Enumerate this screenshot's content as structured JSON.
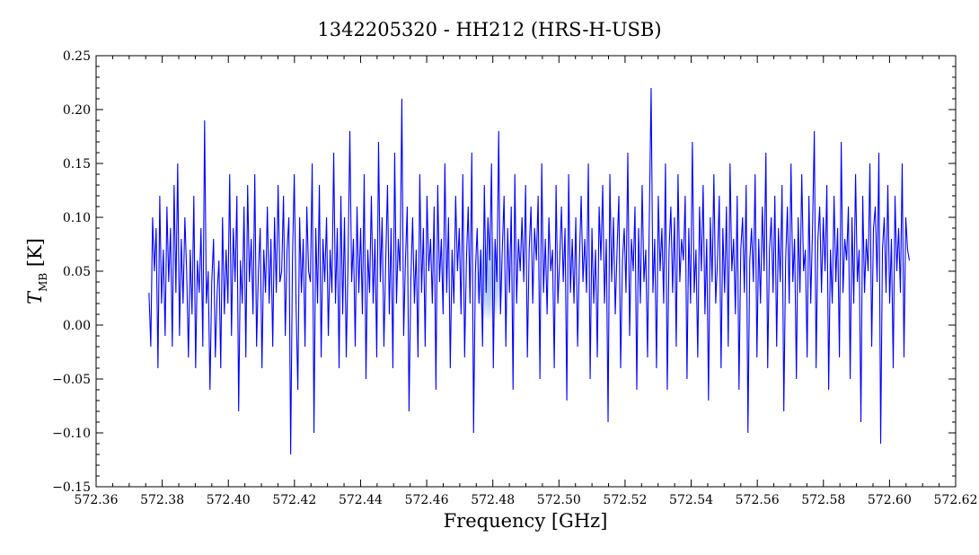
{
  "chart_data": {
    "type": "line",
    "title": "1342205320 - HH212 (HRS-H-USB)",
    "xlabel": "Frequency [GHz]",
    "ylabel_main": "T",
    "ylabel_sub": "MB",
    "ylabel_unit": " [K]",
    "xlim": [
      572.36,
      572.62
    ],
    "ylim": [
      -0.15,
      0.25
    ],
    "xticks": [
      572.36,
      572.38,
      572.4,
      572.42,
      572.44,
      572.46,
      572.48,
      572.5,
      572.52,
      572.54,
      572.56,
      572.58,
      572.6,
      572.62
    ],
    "xtick_labels": [
      "572.36",
      "572.38",
      "572.40",
      "572.42",
      "572.44",
      "572.46",
      "572.48",
      "572.50",
      "572.52",
      "572.54",
      "572.56",
      "572.58",
      "572.60",
      "572.62"
    ],
    "yticks": [
      -0.15,
      -0.1,
      -0.05,
      0.0,
      0.05,
      0.1,
      0.15,
      0.2,
      0.25
    ],
    "ytick_labels": [
      "−0.15",
      "−0.10",
      "−0.05",
      "0.00",
      "0.05",
      "0.10",
      "0.15",
      "0.20",
      "0.25"
    ],
    "grid": false,
    "line_color": "#0000ff",
    "highlight_color": "#8fb0ea",
    "highlight": {
      "x": 572.479,
      "y": 0.043,
      "rx": 0.0045,
      "ry": 0.04
    },
    "series": [
      {
        "x_start": 572.376,
        "x_end": 572.606,
        "y": [
          0.03,
          -0.02,
          0.1,
          0.05,
          0.09,
          -0.04,
          0.12,
          0.02,
          0.07,
          -0.01,
          0.11,
          0.04,
          0.09,
          -0.02,
          0.13,
          0.03,
          0.15,
          -0.01,
          0.08,
          0.02,
          0.1,
          0.05,
          -0.03,
          0.07,
          0.01,
          0.12,
          -0.04,
          0.06,
          0.03,
          0.09,
          -0.02,
          0.19,
          0.02,
          0.05,
          -0.06,
          0.04,
          0.08,
          -0.03,
          0.03,
          0.06,
          -0.04,
          0.1,
          0.01,
          0.07,
          0.02,
          0.14,
          -0.01,
          0.09,
          0.04,
          0.12,
          -0.08,
          0.06,
          0.02,
          0.11,
          -0.03,
          0.13,
          0.04,
          0.08,
          0.01,
          0.14,
          -0.02,
          0.05,
          0.09,
          -0.04,
          0.07,
          0.03,
          0.11,
          0.02,
          0.08,
          -0.02,
          0.1,
          0.03,
          0.13,
          0.04,
          0.05,
          0.12,
          -0.01,
          0.07,
          0.1,
          -0.12,
          0.06,
          0.14,
          0.02,
          -0.06,
          0.1,
          0.03,
          0.08,
          -0.02,
          0.11,
          0.05,
          0.04,
          0.15,
          -0.1,
          0.09,
          0.02,
          0.13,
          -0.03,
          0.08,
          0.04,
          0.1,
          -0.01,
          0.07,
          0.03,
          0.16,
          0.02,
          0.09,
          -0.04,
          0.12,
          0.01,
          0.1,
          -0.03,
          0.06,
          0.18,
          0.04,
          0.08,
          -0.02,
          0.11,
          0.03,
          0.09,
          0.01,
          0.14,
          -0.05,
          0.07,
          0.03,
          0.12,
          0.02,
          0.08,
          -0.03,
          0.17,
          0.04,
          0.1,
          -0.02,
          0.06,
          0.13,
          0.01,
          0.09,
          -0.04,
          0.16,
          0.02,
          0.08,
          0.05,
          0.21,
          -0.01,
          0.06,
          0.11,
          -0.08,
          0.04,
          0.1,
          0.02,
          0.07,
          -0.03,
          0.14,
          0.03,
          0.09,
          -0.02,
          0.12,
          0.05,
          0.08,
          0.02,
          0.11,
          -0.06,
          0.13,
          0.04,
          0.08,
          0.01,
          0.15,
          0.03,
          0.1,
          -0.04,
          0.07,
          0.02,
          0.12,
          0.05,
          0.09,
          0.01,
          0.14,
          -0.03,
          0.06,
          0.11,
          0.02,
          0.16,
          -0.1,
          0.05,
          0.09,
          0.02,
          0.07,
          -0.02,
          0.13,
          0.03,
          0.1,
          0.06,
          0.15,
          -0.04,
          0.08,
          0.04,
          0.18,
          0.01,
          0.07,
          0.12,
          -0.02,
          0.09,
          0.03,
          0.11,
          -0.06,
          0.14,
          0.02,
          0.08,
          0.05,
          0.1,
          0.04,
          0.13,
          -0.03,
          0.07,
          0.11,
          0.02,
          0.09,
          0.06,
          0.12,
          -0.05,
          0.15,
          0.03,
          0.08,
          0.01,
          0.1,
          0.05,
          0.07,
          -0.04,
          0.13,
          0.02,
          0.06,
          0.11,
          0.04,
          0.09,
          -0.07,
          0.14,
          0.03,
          0.08,
          0.02,
          0.1,
          -0.02,
          0.06,
          0.12,
          0.04,
          0.08,
          0.03,
          0.15,
          -0.05,
          0.09,
          0.02,
          0.07,
          -0.03,
          0.11,
          0.06,
          0.13,
          0.02,
          0.08,
          -0.09,
          0.14,
          0.04,
          0.1,
          0.01,
          0.07,
          0.12,
          -0.04,
          0.06,
          0.09,
          0.03,
          0.16,
          -0.01,
          0.08,
          0.05,
          0.11,
          -0.06,
          0.09,
          0.02,
          0.13,
          0.04,
          0.07,
          -0.03,
          0.1,
          0.22,
          0.03,
          0.08,
          -0.04,
          0.12,
          0.05,
          0.09,
          0.02,
          0.15,
          -0.06,
          0.07,
          0.11,
          0.03,
          0.1,
          -0.02,
          0.14,
          0.04,
          0.08,
          0.06,
          0.12,
          -0.05,
          0.09,
          0.02,
          0.17,
          0.03,
          0.07,
          -0.03,
          0.11,
          0.05,
          0.13,
          0.01,
          0.08,
          -0.07,
          0.1,
          0.04,
          0.14,
          0.02,
          0.06,
          0.12,
          -0.04,
          0.09,
          0.03,
          0.11,
          -0.02,
          0.15,
          0.05,
          0.08,
          0.01,
          0.12,
          -0.06,
          0.07,
          0.1,
          0.03,
          0.13,
          -0.1,
          0.06,
          0.09,
          0.04,
          0.14,
          -0.03,
          0.08,
          0.02,
          0.11,
          0.05,
          0.16,
          -0.04,
          0.07,
          0.1,
          0.03,
          0.12,
          -0.02,
          0.09,
          0.04,
          0.13,
          -0.08,
          0.06,
          0.11,
          0.02,
          0.15,
          0.04,
          0.08,
          -0.05,
          0.1,
          0.03,
          0.14,
          0.05,
          0.07,
          -0.03,
          0.12,
          0.02,
          0.09,
          0.18,
          -0.04,
          0.08,
          0.11,
          0.03,
          0.1,
          0.05,
          0.13,
          -0.06,
          0.07,
          0.02,
          0.12,
          0.04,
          0.09,
          -0.03,
          0.17,
          0.03,
          0.08,
          0.06,
          0.11,
          -0.05,
          0.1,
          0.02,
          0.14,
          0.04,
          0.07,
          -0.09,
          0.12,
          0.03,
          0.08,
          0.05,
          0.15,
          -0.02,
          0.09,
          0.11,
          0.04,
          0.16,
          -0.11,
          0.07,
          0.1,
          0.03,
          0.13,
          0.02,
          0.08,
          -0.04,
          0.12,
          0.05,
          0.09,
          0.03,
          0.15,
          -0.03,
          0.1,
          0.07,
          0.06
        ]
      }
    ]
  }
}
